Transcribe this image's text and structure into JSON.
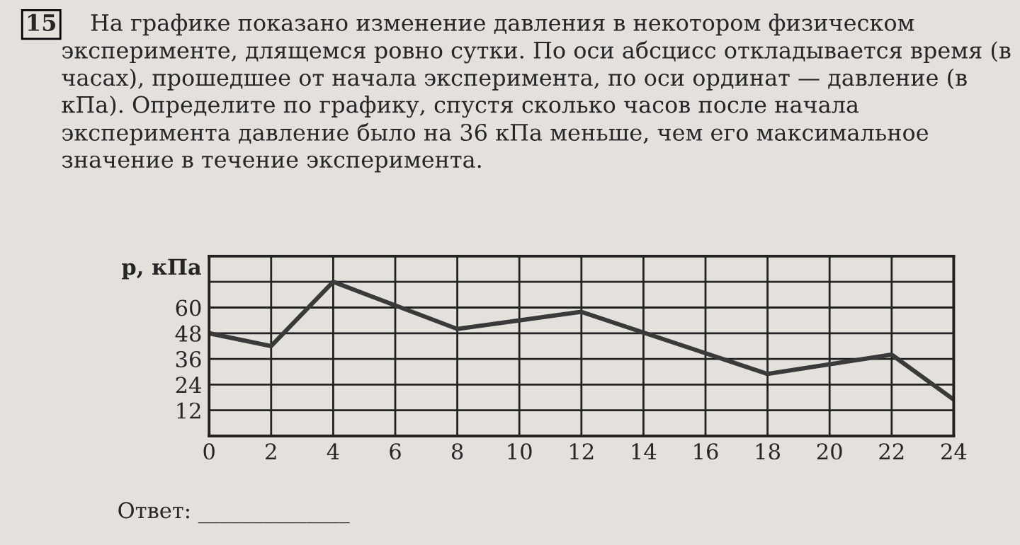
{
  "chart_data": {
    "type": "line",
    "title": "На графике показано изменение давления в некотором физическом эксперименте, длящемся ровно сутки. По оси абсцисс откладывается время (в часах), прошедшее от начала эксперимента, по оси ординат — давление (в кПа). Определите по графику, спустя сколько часов после начала эксперимента давление было на 36 кПа меньше, чем его максимальное значение в течение эксперимента.",
    "ylabel": "p, кПа",
    "annotations": [
      "15",
      "Ответ: ______________"
    ],
    "x": [
      0,
      2,
      4,
      8,
      12,
      18,
      22,
      24
    ],
    "series": [
      {
        "color": "#3a3a3a",
        "values": [
          48,
          42,
          72,
          50,
          58,
          29,
          38,
          17
        ]
      }
    ],
    "xlim": [
      0,
      24
    ],
    "xticks": [
      0,
      2,
      4,
      6,
      8,
      10,
      12,
      14,
      16,
      18,
      20,
      22,
      24
    ],
    "ylim": [
      0,
      84
    ],
    "yticks": [
      12,
      24,
      36,
      48,
      60,
      {
        "value": 72,
        "label": null
      },
      {
        "value": 84,
        "label": null
      }
    ],
    "grid": true,
    "marker": "none",
    "line_style": "solid"
  }
}
